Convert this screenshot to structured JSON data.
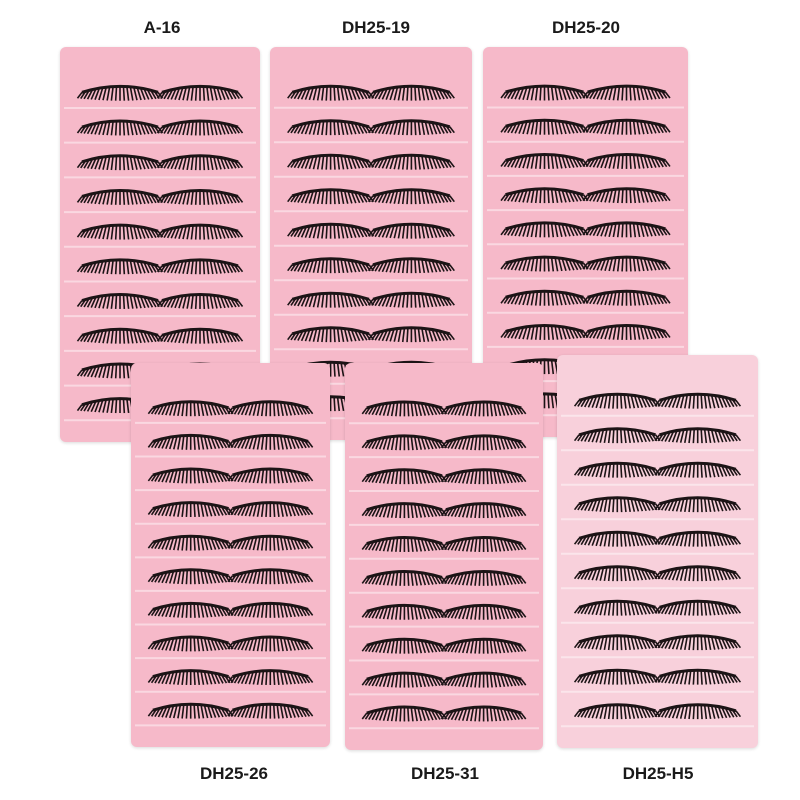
{
  "products": [
    {
      "code": "A-16",
      "tray_color": "#f6b9c9",
      "pairs": 10
    },
    {
      "code": "DH25-19",
      "tray_color": "#f6b9c9",
      "pairs": 10
    },
    {
      "code": "DH25-20",
      "tray_color": "#f6b9c9",
      "pairs": 10
    },
    {
      "code": "DH25-26",
      "tray_color": "#f6b9c9",
      "pairs": 10
    },
    {
      "code": "DH25-31",
      "tray_color": "#f6b9c9",
      "pairs": 10
    },
    {
      "code": "DH25-H5",
      "tray_color": "#f8d0db",
      "pairs": 10
    }
  ],
  "lash_color": "#1c1416"
}
